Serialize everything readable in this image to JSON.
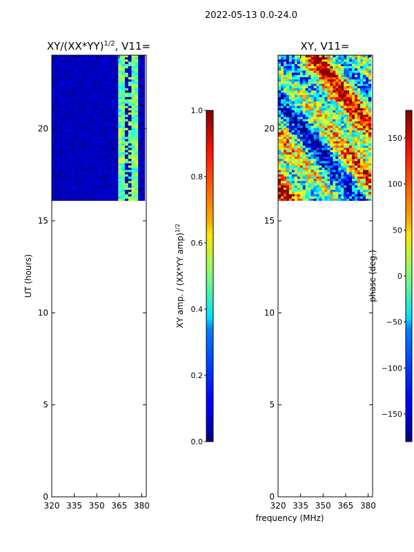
{
  "figure": {
    "suptitle": "2022-05-13 0.0-24.0",
    "xlabel_shared": "frequency (MHz)"
  },
  "chart_data": [
    {
      "type": "heatmap",
      "title": "XY/(XX*YY)",
      "title_exponent": "1/2",
      "title_suffix": ", V11=",
      "xlabel": "frequency (MHz)",
      "ylabel": "UT (hours)",
      "xlim": [
        320,
        383
      ],
      "ylim": [
        0,
        24
      ],
      "xticks": [
        320,
        335,
        350,
        365,
        380
      ],
      "yticks": [
        0,
        5,
        10,
        15,
        20
      ],
      "data_ut_range": [
        16.1,
        24.0
      ],
      "colorbar": {
        "label": "XY amp. / (XX*YY amp)",
        "label_exponent": "1/2",
        "range": [
          0.0,
          1.0
        ],
        "ticks": [
          "0.0",
          "0.2",
          "0.4",
          "0.6",
          "0.8",
          "1.0"
        ],
        "colormap": "jet"
      }
    },
    {
      "type": "heatmap",
      "title": "XY, V11=",
      "xlabel": "frequency (MHz)",
      "ylabel": "",
      "xlim": [
        320,
        383
      ],
      "ylim": [
        0,
        24
      ],
      "xticks": [
        320,
        335,
        350,
        365,
        380
      ],
      "yticks": [
        0,
        5,
        10,
        15,
        20
      ],
      "data_ut_range": [
        16.1,
        24.0
      ],
      "colorbar": {
        "label": "phase (deg.)",
        "range": [
          -180,
          180
        ],
        "ticks": [
          "−150",
          "−100",
          "−50",
          "0",
          "50",
          "100",
          "150"
        ],
        "tick_values": [
          -150,
          -100,
          -50,
          0,
          50,
          100,
          150
        ],
        "colormap": "jet"
      }
    }
  ]
}
